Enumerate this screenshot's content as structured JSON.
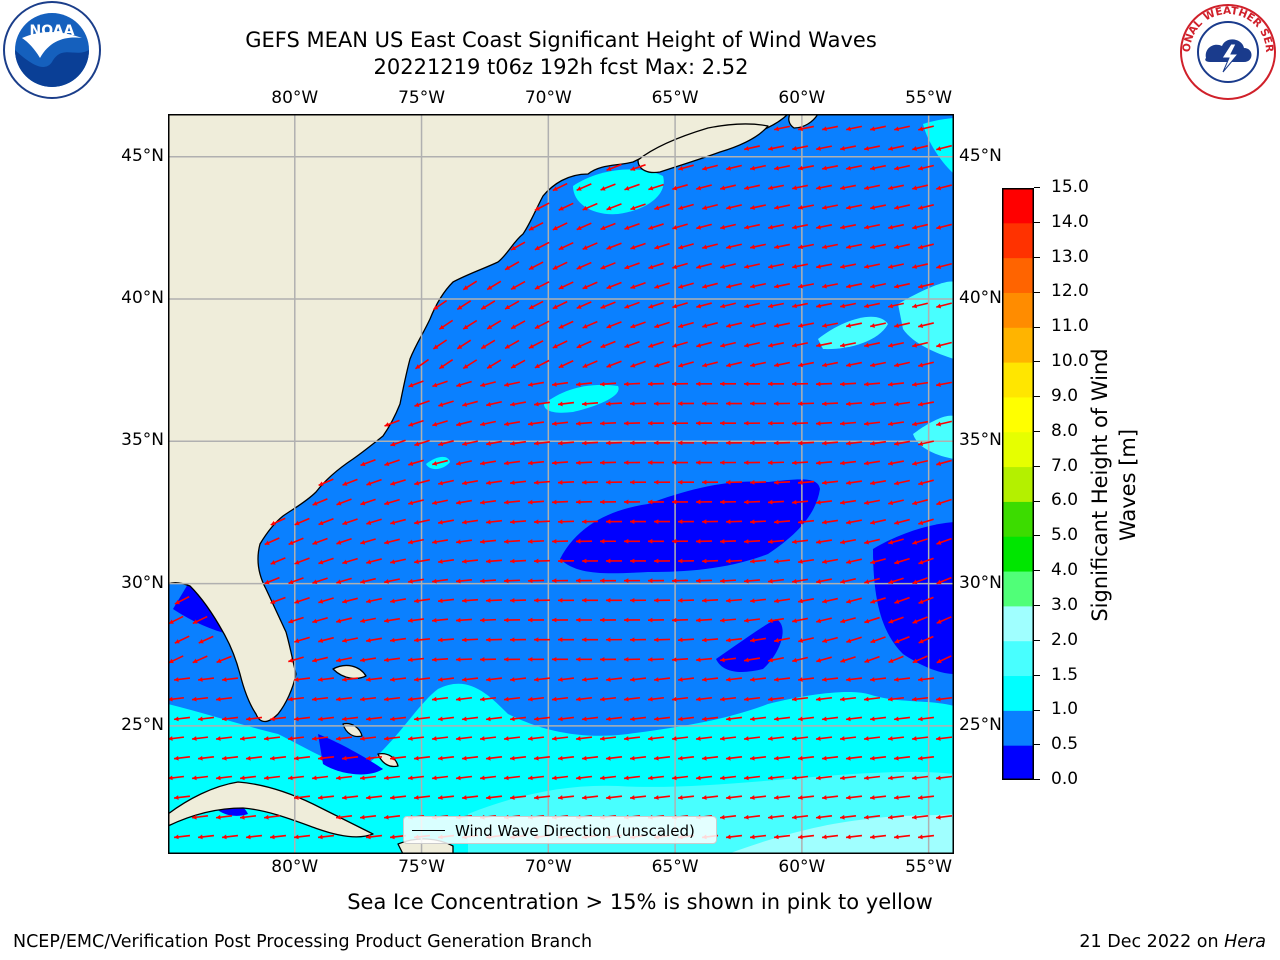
{
  "title_line1": "GEFS MEAN US East Coast Significant Height of Wind Waves",
  "title_line2": "20221219 t06z 192h fcst    Max: 2.52",
  "map": {
    "lon_ticks": [
      "80°W",
      "75°W",
      "70°W",
      "65°W",
      "60°W",
      "55°W"
    ],
    "lat_ticks": [
      "45°N",
      "40°N",
      "35°N",
      "30°N",
      "25°N"
    ],
    "lon_range": [
      -85,
      -54
    ],
    "lat_range": [
      20.5,
      46.5
    ],
    "land_color": "#efedda",
    "ocean_base_color": "#0a80ff",
    "grid": true
  },
  "colorbar": {
    "label": "Significant Height of Wind Waves [m]",
    "label_line1": "Significant Height of Wind",
    "label_line2": "Waves [m]",
    "tick_labels": [
      "15.0",
      "14.0",
      "13.0",
      "12.0",
      "11.0",
      "10.0",
      "9.0",
      "8.0",
      "7.0",
      "6.0",
      "5.0",
      "4.0",
      "3.0",
      "2.0",
      "1.5",
      "1.0",
      "0.5",
      "0.0"
    ],
    "levels": [
      0.0,
      0.5,
      1.0,
      1.5,
      2.0,
      3.0,
      4.0,
      5.0,
      6.0,
      7.0,
      8.0,
      9.0,
      10.0,
      11.0,
      12.0,
      13.0,
      14.0,
      15.0
    ],
    "colors": [
      "#0000ff",
      "#0a80ff",
      "#00ffff",
      "#48ffff",
      "#a0ffff",
      "#50ff78",
      "#00e600",
      "#3cdc00",
      "#b4f000",
      "#e6ff00",
      "#ffff00",
      "#ffe600",
      "#ffb400",
      "#ff8c00",
      "#ff6400",
      "#ff3200",
      "#ff0000"
    ]
  },
  "legend": {
    "label": "Wind Wave Direction (unscaled)"
  },
  "note": "Sea Ice Concentration > 15% is shown in pink to yellow",
  "footer": {
    "left": "NCEP/EMC/Verification Post Processing Product Generation Branch",
    "date": "21 Dec 2022 on ",
    "machine": "Hera"
  },
  "logos": {
    "left": "NOAA",
    "right_text": "NATIONAL WEATHER SERVICE"
  },
  "arrow_color": "#ff0000"
}
